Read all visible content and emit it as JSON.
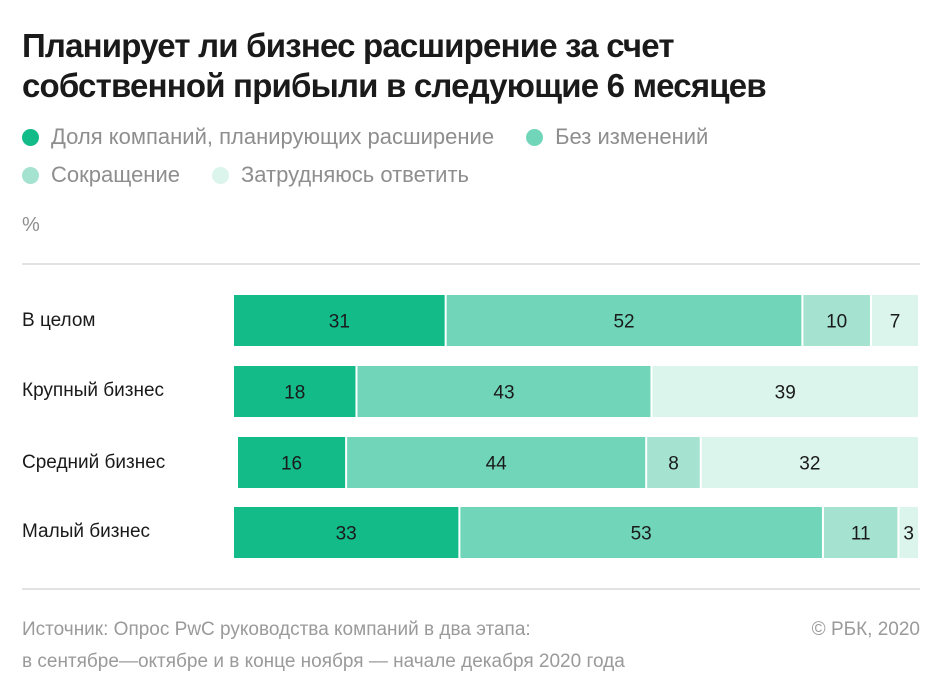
{
  "chart_data": {
    "type": "bar",
    "orientation": "horizontal",
    "stacked": true,
    "title": "Планирует ли бизнес расширение за счет собственной прибыли в следующие 6 месяцев",
    "unit_label": "%",
    "categories": [
      "В целом",
      "Крупный бизнес",
      "Средний бизнес",
      "Малый бизнес"
    ],
    "series": [
      {
        "name": "Доля компаний, планирующих расширение",
        "color": "#13bb89",
        "values": [
          31,
          18,
          16,
          33
        ]
      },
      {
        "name": "Без изменений",
        "color": "#71d6b9",
        "values": [
          52,
          43,
          44,
          53
        ]
      },
      {
        "name": "Сокращение",
        "color": "#a5e3d0",
        "values": [
          10,
          null,
          8,
          11
        ]
      },
      {
        "name": "Затрудняюсь ответить",
        "color": "#dbf4ec",
        "values": [
          7,
          39,
          32,
          3
        ]
      }
    ],
    "xlim": [
      0,
      100
    ],
    "legend_position": "top"
  },
  "title_lines": [
    "Планирует ли бизнес расширение за счет",
    "собственной прибыли в следующие 6 месяцев"
  ],
  "footer": {
    "source_line1": "Источник: Опрос PwC руководства компаний в два этапа:",
    "source_line2": "в сентябре—октябре и в конце ноября — начале декабря 2020 года",
    "copyright": "© РБК, 2020"
  }
}
